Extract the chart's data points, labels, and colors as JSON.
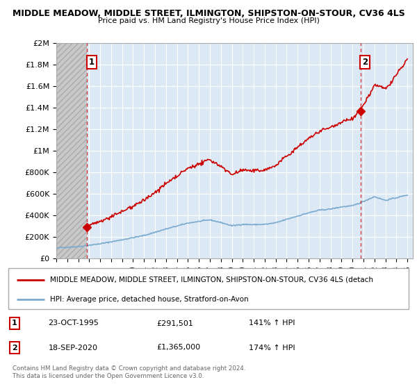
{
  "title1": "MIDDLE MEADOW, MIDDLE STREET, ILMINGTON, SHIPSTON-ON-STOUR, CV36 4LS",
  "title2": "Price paid vs. HM Land Registry's House Price Index (HPI)",
  "xlim_start": 1993.0,
  "xlim_end": 2025.5,
  "ylim": [
    0,
    2000000
  ],
  "yticks": [
    0,
    200000,
    400000,
    600000,
    800000,
    1000000,
    1200000,
    1400000,
    1600000,
    1800000,
    2000000
  ],
  "ytick_labels": [
    "£0",
    "£200K",
    "£400K",
    "£600K",
    "£800K",
    "£1M",
    "£1.2M",
    "£1.4M",
    "£1.6M",
    "£1.8M",
    "£2M"
  ],
  "xtick_years": [
    1993,
    1994,
    1995,
    1996,
    1997,
    1998,
    1999,
    2000,
    2001,
    2002,
    2003,
    2004,
    2005,
    2006,
    2007,
    2008,
    2009,
    2010,
    2011,
    2012,
    2013,
    2014,
    2015,
    2016,
    2017,
    2018,
    2019,
    2020,
    2021,
    2022,
    2023,
    2024,
    2025
  ],
  "sale1_x": 1995.81,
  "sale1_y": 291501,
  "sale2_x": 2020.72,
  "sale2_y": 1365000,
  "sale_color": "#cc0000",
  "hpi_color": "#7aaacf",
  "plot_bg_color": "#dce9f5",
  "grid_color": "#ffffff",
  "hatch_region_end": 1995.81,
  "legend_label1": "MIDDLE MEADOW, MIDDLE STREET, ILMINGTON, SHIPSTON-ON-STOUR, CV36 4LS (detach",
  "legend_label2": "HPI: Average price, detached house, Stratford-on-Avon",
  "annotation1_date": "23-OCT-1995",
  "annotation1_price": "£291,501",
  "annotation1_hpi": "141% ↑ HPI",
  "annotation2_date": "18-SEP-2020",
  "annotation2_price": "£1,365,000",
  "annotation2_hpi": "174% ↑ HPI",
  "footer": "Contains HM Land Registry data © Crown copyright and database right 2024.\nThis data is licensed under the Open Government Licence v3.0."
}
